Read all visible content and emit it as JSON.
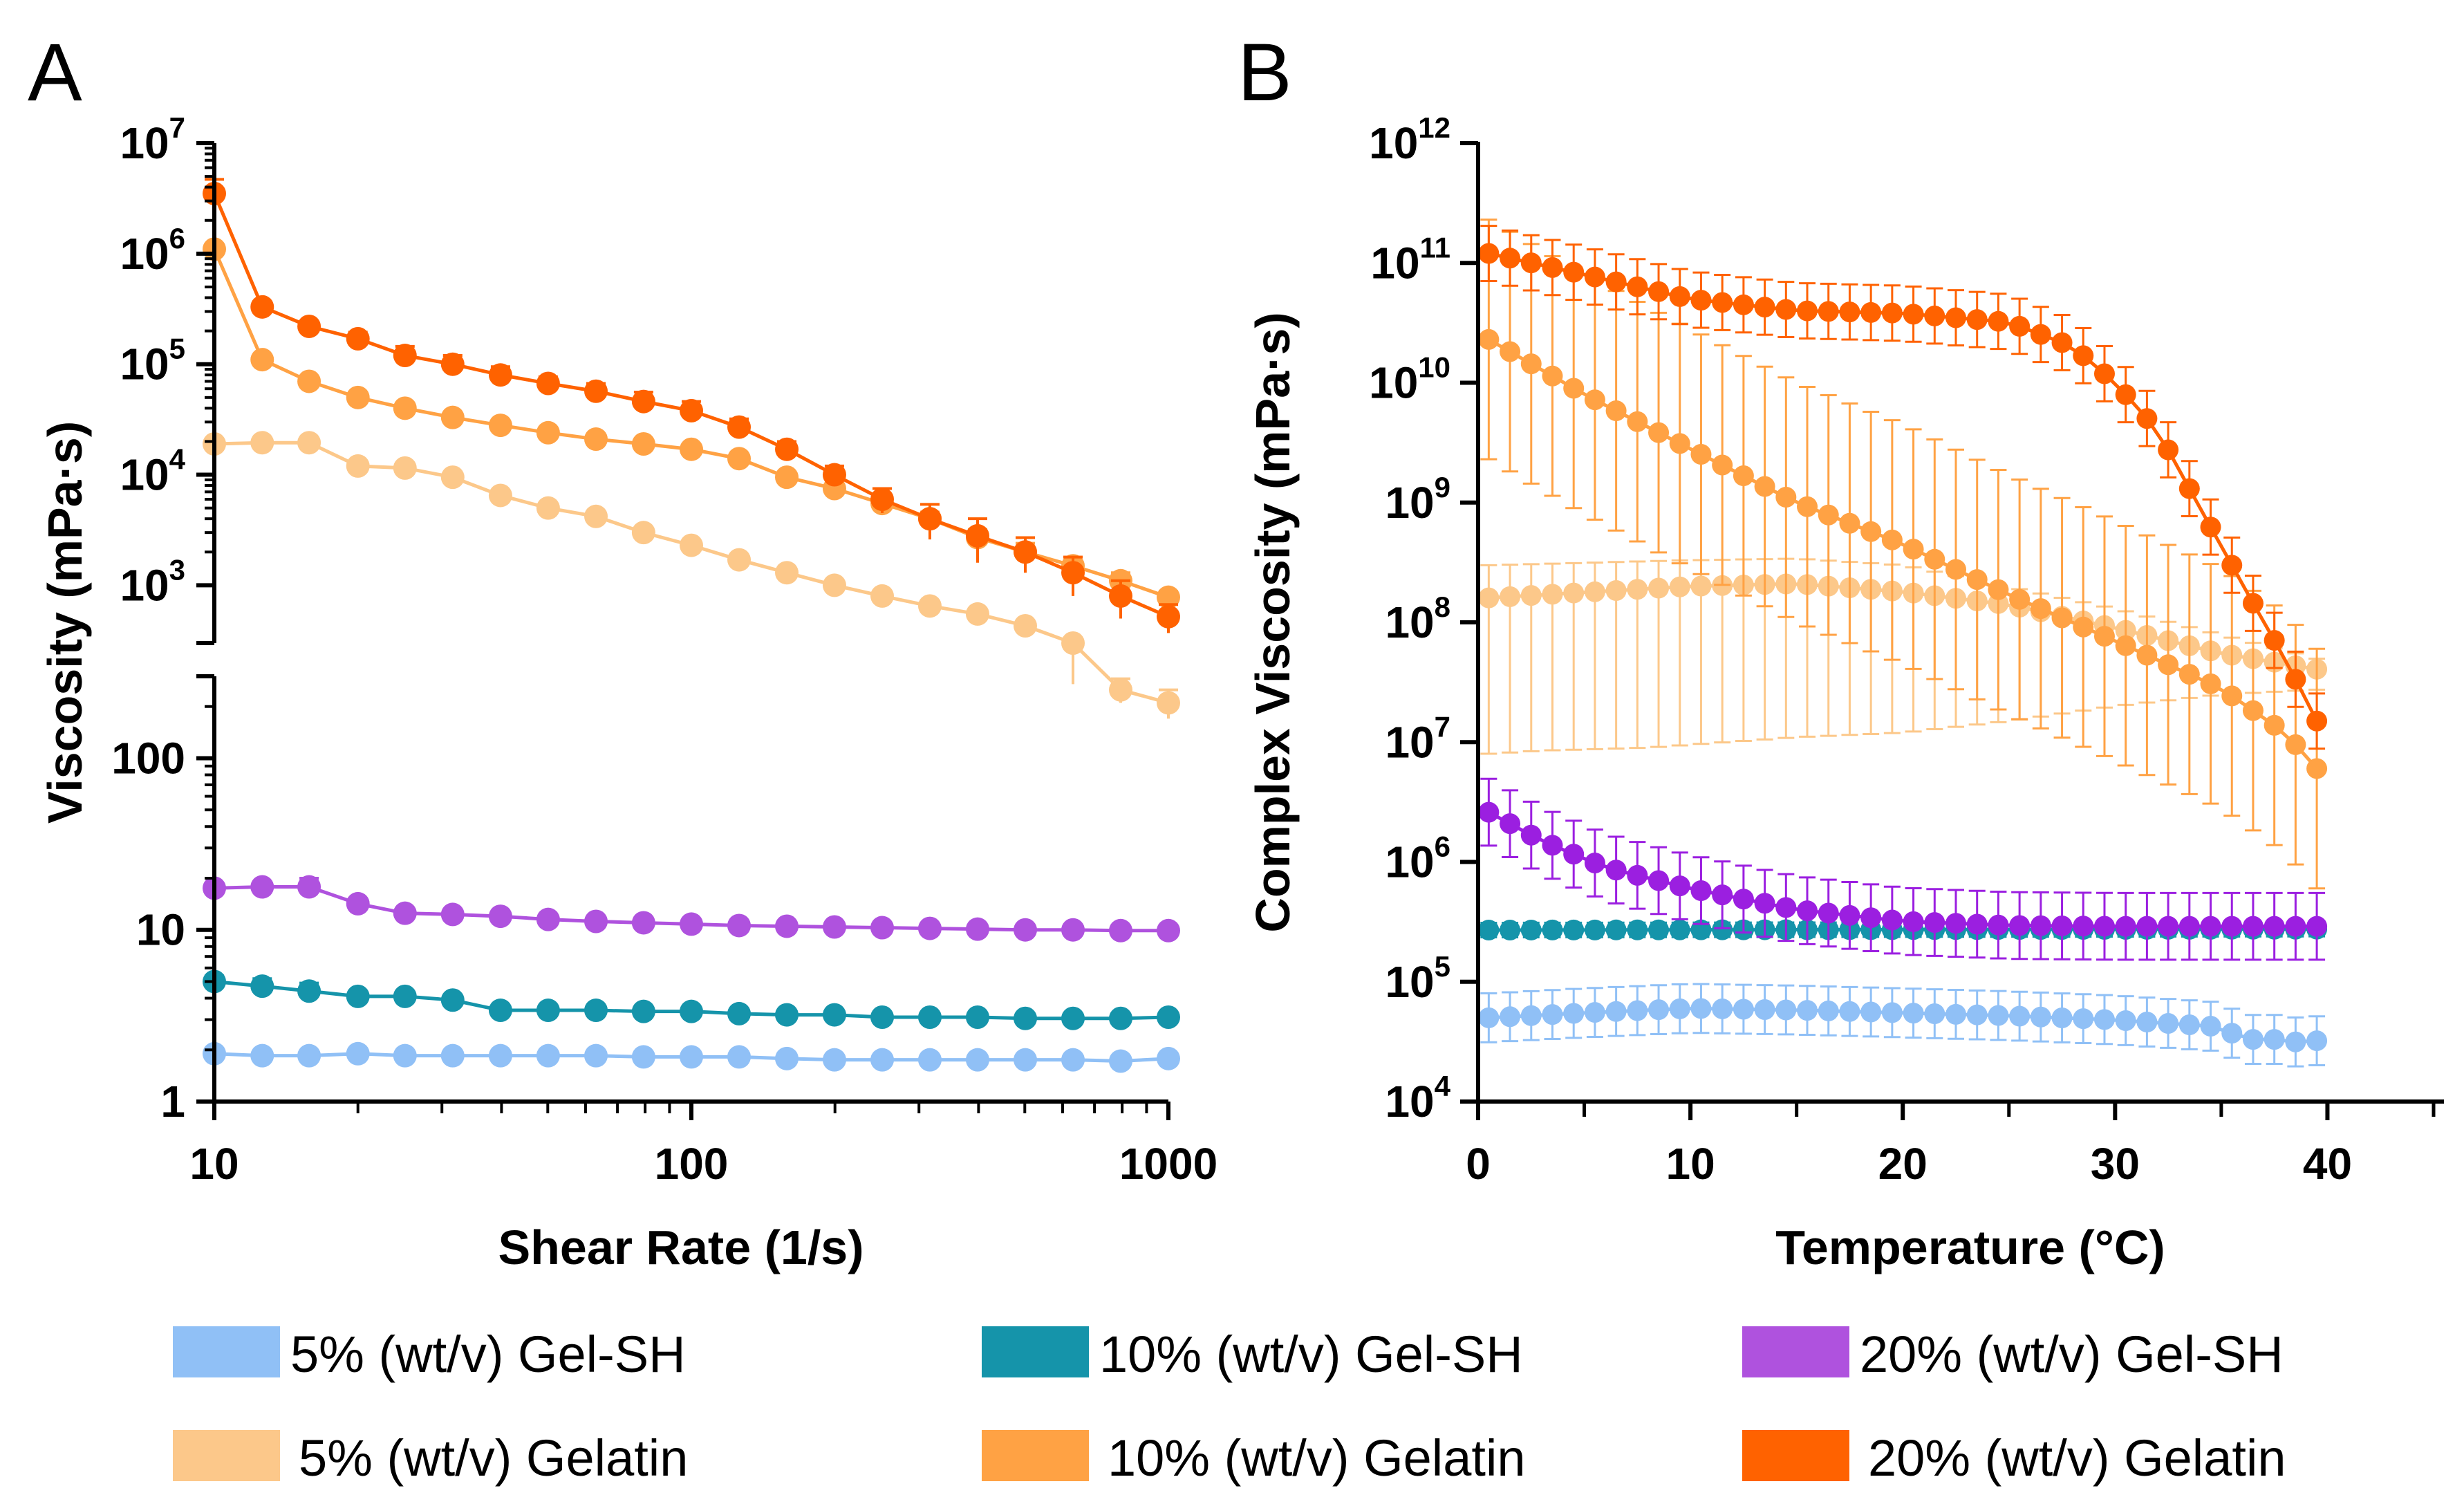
{
  "chart_data": [
    {
      "panel_label": "A",
      "type": "line",
      "xlabel": "Shear Rate (1/s)",
      "ylabel": "Viscosity (mPa·s)",
      "xscale": "log",
      "yscale": "log (broken axis)",
      "xlim": [
        10,
        1000
      ],
      "ylim_lower": [
        1,
        300
      ],
      "ylim_upper": [
        300,
        10000000
      ],
      "x_ticks": [
        {
          "value": 10,
          "label": "10"
        },
        {
          "value": 100,
          "label": "100"
        },
        {
          "value": 1000,
          "label": "1000"
        }
      ],
      "y_ticks_lower": [
        {
          "value": 1,
          "label": "1"
        },
        {
          "value": 10,
          "label": "10"
        },
        {
          "value": 100,
          "label": "100"
        }
      ],
      "y_ticks_upper": [
        {
          "value": 1000,
          "base": "10",
          "exp": "3"
        },
        {
          "value": 10000,
          "base": "10",
          "exp": "4"
        },
        {
          "value": 100000,
          "base": "10",
          "exp": "5"
        },
        {
          "value": 1000000,
          "base": "10",
          "exp": "6"
        },
        {
          "value": 10000000,
          "base": "10",
          "exp": "7"
        }
      ],
      "x": [
        10,
        12.6,
        15.8,
        20,
        25.1,
        31.6,
        39.8,
        50.1,
        63.1,
        79.4,
        100,
        125.9,
        158.5,
        199.5,
        251.2,
        316.2,
        398.1,
        501.2,
        631,
        794.3,
        1000
      ],
      "series": [
        {
          "name": "5% (wt/v) Gel-SH",
          "color": "#90C0F6",
          "values": [
            1.9,
            1.85,
            1.85,
            1.9,
            1.85,
            1.85,
            1.85,
            1.85,
            1.85,
            1.82,
            1.82,
            1.82,
            1.78,
            1.75,
            1.75,
            1.75,
            1.75,
            1.75,
            1.75,
            1.72,
            1.78
          ],
          "error": [
            0.05,
            0.05,
            0.05,
            0.05,
            0.05,
            0.05,
            0.05,
            0.05,
            0.05,
            0.05,
            0.05,
            0.05,
            0.05,
            0.05,
            0.05,
            0.05,
            0.05,
            0.05,
            0.05,
            0.05,
            0.05
          ]
        },
        {
          "name": "10% (wt/v) Gel-SH",
          "color": "#1594AA",
          "values": [
            5.0,
            4.7,
            4.4,
            4.1,
            4.1,
            3.9,
            3.4,
            3.4,
            3.4,
            3.35,
            3.35,
            3.25,
            3.2,
            3.2,
            3.1,
            3.1,
            3.1,
            3.05,
            3.05,
            3.05,
            3.1
          ],
          "error": [
            0.4,
            0.5,
            0.5,
            0.2,
            0.2,
            0.2,
            0.1,
            0.1,
            0.1,
            0.1,
            0.1,
            0.1,
            0.1,
            0.1,
            0.1,
            0.1,
            0.1,
            0.1,
            0.1,
            0.1,
            0.1
          ]
        },
        {
          "name": "20% (wt/v) Gel-SH",
          "color": "#AF52DE",
          "values": [
            17.5,
            17.8,
            17.8,
            14.2,
            12.5,
            12.3,
            12.0,
            11.5,
            11.2,
            11.0,
            10.8,
            10.6,
            10.5,
            10.4,
            10.3,
            10.2,
            10.1,
            10.0,
            10.0,
            9.9,
            9.9
          ],
          "error": [
            0.6,
            0.6,
            2.2,
            0.6,
            0.3,
            0.3,
            0.3,
            0.3,
            0.3,
            0.3,
            0.3,
            0.3,
            0.3,
            0.3,
            0.3,
            0.3,
            0.3,
            0.3,
            0.3,
            0.3,
            0.3
          ]
        },
        {
          "name": "5% (wt/v) Gelatin",
          "color": "#FCC88A",
          "values": [
            19000,
            19500,
            19500,
            12000,
            11500,
            9500,
            6500,
            5000,
            4200,
            3000,
            2300,
            1700,
            1300,
            1000,
            800,
            650,
            550,
            430,
            300,
            250,
            210
          ],
          "error": [
            1500,
            1500,
            1500,
            1000,
            1000,
            700,
            500,
            400,
            300,
            200,
            150,
            100,
            80,
            60,
            50,
            40,
            40,
            40,
            30,
            40,
            40
          ]
        },
        {
          "name": "10% (wt/v) Gelatin",
          "color": "#FFA244",
          "values": [
            1100000,
            110000,
            70000,
            50000,
            40000,
            33000,
            28000,
            24000,
            21000,
            19000,
            17000,
            14000,
            9500,
            7500,
            5500,
            4000,
            2700,
            2000,
            1500,
            1100,
            780
          ],
          "error": [
            100000,
            10000,
            5000,
            4000,
            3000,
            2500,
            2000,
            2000,
            1500,
            1500,
            1500,
            1200,
            1000,
            800,
            600,
            600,
            500,
            400,
            300,
            200,
            100
          ]
        },
        {
          "name": "20% (wt/v) Gelatin",
          "color": "#FF6200",
          "values": [
            3500000,
            330000,
            220000,
            170000,
            120000,
            100000,
            80000,
            67000,
            57000,
            46000,
            38000,
            27000,
            17000,
            10000,
            6000,
            4000,
            2800,
            2000,
            1300,
            800,
            520
          ],
          "error": [
            1200000,
            30000,
            20000,
            25000,
            25000,
            20000,
            15000,
            10000,
            10000,
            10000,
            8000,
            5000,
            3000,
            2000,
            1500,
            1400,
            1200,
            700,
            500,
            300,
            150
          ]
        }
      ]
    },
    {
      "panel_label": "B",
      "type": "line",
      "xlabel": "Temperature (°C)",
      "ylabel": "Complex Viscosity (mPa·s)",
      "xscale": "linear",
      "yscale": "log",
      "xlim": [
        0,
        45
      ],
      "ylim": [
        10000,
        1000000000000
      ],
      "x_ticks": [
        {
          "value": 0,
          "label": "0"
        },
        {
          "value": 10,
          "label": "10"
        },
        {
          "value": 20,
          "label": "20"
        },
        {
          "value": 30,
          "label": "30"
        },
        {
          "value": 40,
          "label": "40"
        }
      ],
      "y_ticks": [
        {
          "value": 10000,
          "base": "10",
          "exp": "4"
        },
        {
          "value": 100000,
          "base": "10",
          "exp": "5"
        },
        {
          "value": 1000000,
          "base": "10",
          "exp": "6"
        },
        {
          "value": 10000000,
          "base": "10",
          "exp": "7"
        },
        {
          "value": 100000000,
          "base": "10",
          "exp": "8"
        },
        {
          "value": 1000000000,
          "base": "10",
          "exp": "9"
        },
        {
          "value": 10000000000,
          "base": "10",
          "exp": "10"
        },
        {
          "value": 100000000000,
          "base": "10",
          "exp": "11"
        },
        {
          "value": 1000000000000,
          "base": "10",
          "exp": "12"
        }
      ],
      "x_start": 0.5,
      "x_step": 1,
      "n_points": 40,
      "series": [
        {
          "name": "5% (wt/v) Gel-SH",
          "color": "#90C0F6",
          "anchors": [
            [
              0.5,
              50000
            ],
            [
              5,
              55000
            ],
            [
              10,
              60000
            ],
            [
              15,
              58000
            ],
            [
              20,
              55000
            ],
            [
              25,
              52000
            ],
            [
              30,
              48000
            ],
            [
              35,
              42000
            ],
            [
              36,
              33000
            ],
            [
              38,
              33000
            ],
            [
              39,
              30000
            ],
            [
              40.5,
              37000
            ]
          ],
          "err_factor": 1.6
        },
        {
          "name": "10% (wt/v) Gel-SH",
          "color": "#1594AA",
          "anchors": [
            [
              0.5,
              270000
            ],
            [
              40.5,
              275000
            ]
          ],
          "err_factor": 1.15
        },
        {
          "name": "20% (wt/v) Gel-SH",
          "color": "#9B1FE0",
          "anchors": [
            [
              0.5,
              2600000
            ],
            [
              3,
              1500000
            ],
            [
              6,
              900000
            ],
            [
              10,
              600000
            ],
            [
              15,
              400000
            ],
            [
              20,
              320000
            ],
            [
              25,
              295000
            ],
            [
              30,
              290000
            ],
            [
              40.5,
              290000
            ]
          ],
          "err_factor": 1.9
        },
        {
          "name": "5% (wt/v) Gelatin",
          "color": "#FCC88A",
          "anchors": [
            [
              0.5,
              160000000
            ],
            [
              10,
              200000000
            ],
            [
              15,
              210000000
            ],
            [
              20,
              180000000
            ],
            [
              25,
              140000000
            ],
            [
              30,
              90000000
            ],
            [
              35,
              55000000
            ],
            [
              40.5,
              38000000
            ]
          ],
          "err_low_anchors": [
            [
              0.5,
              8000000
            ],
            [
              3,
              8500000
            ],
            [
              8,
              9000000
            ],
            [
              15,
              11000000
            ],
            [
              20,
              12000000
            ],
            [
              25,
              15000000
            ],
            [
              30,
              20000000
            ],
            [
              35,
              25000000
            ],
            [
              40.5,
              28000000
            ]
          ],
          "err_high_anchors": [
            [
              0.5,
              300000000
            ],
            [
              10,
              330000000
            ],
            [
              15,
              340000000
            ],
            [
              20,
              300000000
            ],
            [
              30,
              130000000
            ],
            [
              40.5,
              45000000
            ]
          ]
        },
        {
          "name": "10% (wt/v) Gelatin",
          "color": "#FFA244",
          "anchors": [
            [
              0.5,
              23000000000
            ],
            [
              5,
              8000000000
            ],
            [
              10,
              2800000000
            ],
            [
              15,
              1000000000
            ],
            [
              20,
              450000000
            ],
            [
              25,
              170000000
            ],
            [
              30,
              70000000
            ],
            [
              35,
              28000000
            ],
            [
              38,
              12000000
            ],
            [
              40.5,
              3800000
            ]
          ],
          "err_factor": 10
        },
        {
          "name": "20% (wt/v) Gelatin",
          "color": "#FF6200",
          "anchors": [
            [
              0.5,
              120000000000
            ],
            [
              5,
              80000000000
            ],
            [
              10,
              50000000000
            ],
            [
              15,
              40000000000
            ],
            [
              20,
              38000000000
            ],
            [
              25,
              32000000000
            ],
            [
              28,
              20000000000
            ],
            [
              30,
              10000000000
            ],
            [
              32,
              4000000000
            ],
            [
              34,
              900000000
            ],
            [
              35.5,
              300000000
            ],
            [
              37,
              100000000
            ],
            [
              38,
              50000000
            ],
            [
              39.5,
              15000000
            ],
            [
              40.5,
              15000000
            ]
          ],
          "err_factor": 1.7
        }
      ]
    }
  ],
  "legend": {
    "items": [
      {
        "label": "5% (wt/v) Gel-SH",
        "color": "#90C0F6"
      },
      {
        "label": "10% (wt/v) Gel-SH",
        "color": "#1594AA"
      },
      {
        "label": "20% (wt/v) Gel-SH",
        "color": "#AF52DE"
      },
      {
        "label": "5% (wt/v) Gelatin",
        "color": "#FCC88A"
      },
      {
        "label": "10% (wt/v) Gelatin",
        "color": "#FFA244"
      },
      {
        "label": "20% (wt/v) Gelatin",
        "color": "#FF6200"
      }
    ]
  }
}
